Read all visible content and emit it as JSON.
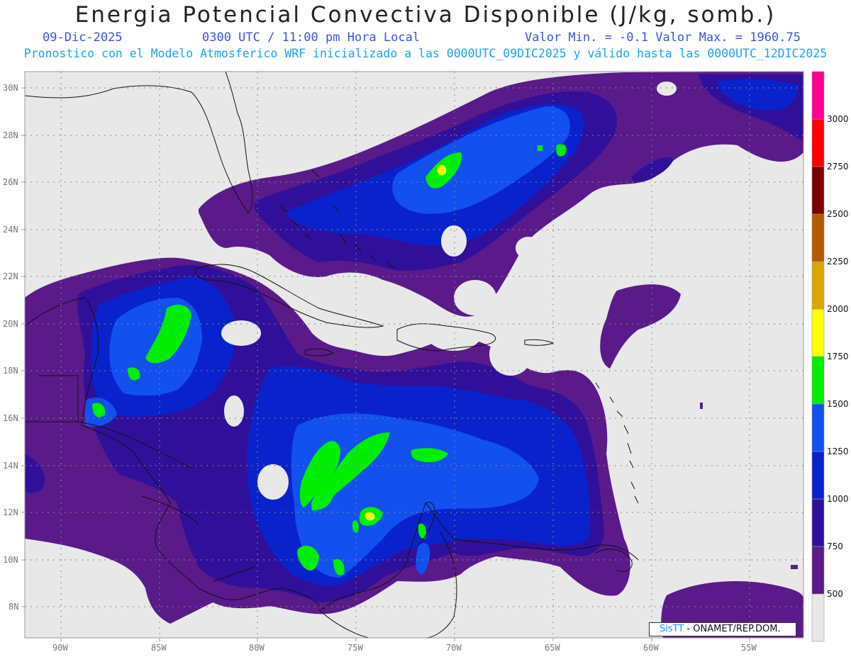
{
  "header": {
    "title": "Energia Potencial Convectiva Disponible (J/kg, somb.)",
    "date": "09-Dic-2025",
    "time": "0300 UTC / 11:00 pm Hora Local",
    "minmax": "Valor Min. = -0.1  Valor Max. = 1960.75",
    "model_info": "Pronostico con el Modelo Atmosferico WRF inicializado a las 0000UTC_09DIC2025 y válido hasta las  0000UTC_12DIC2025"
  },
  "map": {
    "background": "#e8e8e8",
    "lat_labels": [
      "30N",
      "28N",
      "26N",
      "24N",
      "22N",
      "20N",
      "18N",
      "16N",
      "14N",
      "12N",
      "10N",
      "8N"
    ],
    "lon_labels": [
      "90W",
      "85W",
      "80W",
      "75W",
      "70W",
      "65W",
      "60W",
      "55W"
    ]
  },
  "colorbar": {
    "levels": [
      "500",
      "750",
      "1000",
      "1250",
      "1500",
      "1750",
      "2000",
      "2250",
      "2500",
      "2750",
      "3000"
    ],
    "colors": [
      "#e8e8e8",
      "#5a1a8a",
      "#30109a",
      "#0a22cc",
      "#1250f0",
      "#00ee00",
      "#ffff00",
      "#d8a800",
      "#b45a00",
      "#7a0000",
      "#ff0000",
      "#ff0090"
    ]
  },
  "credit": {
    "brand": "SisTT",
    "rest": " - ONAMET/REP.DOM."
  }
}
